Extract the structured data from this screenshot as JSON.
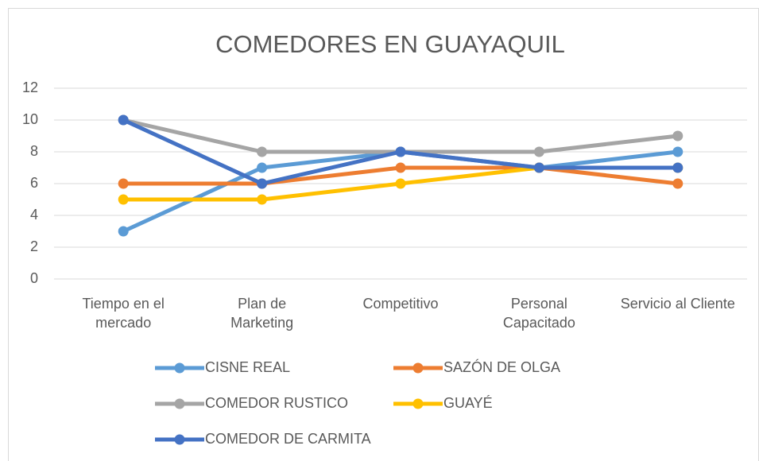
{
  "chart_data": {
    "type": "line",
    "title": "COMEDORES EN GUAYAQUIL",
    "categories": [
      "Tiempo en el mercado",
      "Plan de Marketing",
      "Competitivo",
      "Personal Capacitado",
      "Servicio al Cliente"
    ],
    "series": [
      {
        "name": "CISNE REAL",
        "color": "#5b9bd5",
        "values": [
          3,
          7,
          8,
          7,
          8
        ]
      },
      {
        "name": "SAZÓN DE OLGA",
        "color": "#ed7d31",
        "values": [
          6,
          6,
          7,
          7,
          6
        ]
      },
      {
        "name": "COMEDOR RUSTICO",
        "color": "#a5a5a5",
        "values": [
          10,
          8,
          8,
          8,
          9
        ]
      },
      {
        "name": "GUAYÉ",
        "color": "#ffc000",
        "values": [
          5,
          5,
          6,
          7,
          7
        ]
      },
      {
        "name": "COMEDOR DE CARMITA",
        "color": "#4472c4",
        "values": [
          10,
          6,
          8,
          7,
          7
        ]
      }
    ],
    "ylim": [
      0,
      12
    ],
    "yticks": [
      0,
      2,
      4,
      6,
      8,
      10,
      12
    ],
    "grid": true
  }
}
